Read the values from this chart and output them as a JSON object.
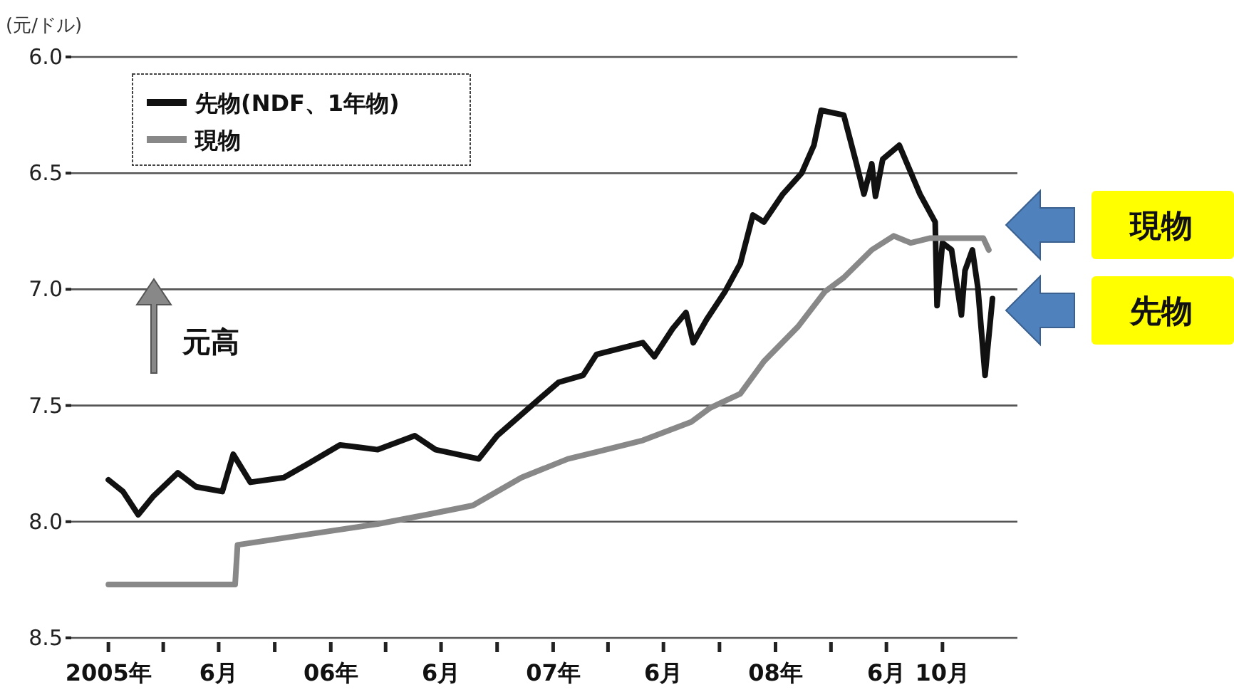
{
  "chart_data": {
    "type": "line",
    "ylabel": "(元/ドル)",
    "ylim": [
      8.5,
      6.0
    ],
    "yticks": [
      {
        "value": 6,
        "label": "6.0"
      },
      {
        "value": 6.5,
        "label": "6.5"
      },
      {
        "value": 7,
        "label": "7.0"
      },
      {
        "value": 7.5,
        "label": "7.5"
      },
      {
        "value": 8,
        "label": "8.0"
      },
      {
        "value": 8.5,
        "label": "8.5"
      }
    ],
    "xlim": [
      "2004-11-01",
      "2009-02-01"
    ],
    "xticks": [
      {
        "value": "2005-01-01",
        "label": "2005年"
      },
      {
        "value": "2005-04-01",
        "label": null
      },
      {
        "value": "2005-07-01",
        "label": "6月"
      },
      {
        "value": "2005-10-01",
        "label": null
      },
      {
        "value": "2006-01-01",
        "label": "06年"
      },
      {
        "value": "2006-04-01",
        "label": null
      },
      {
        "value": "2006-07-01",
        "label": "6月"
      },
      {
        "value": "2006-10-01",
        "label": null
      },
      {
        "value": "2007-01-01",
        "label": "07年"
      },
      {
        "value": "2007-04-01",
        "label": null
      },
      {
        "value": "2007-07-01",
        "label": "6月"
      },
      {
        "value": "2007-10-01",
        "label": null
      },
      {
        "value": "2008-01-01",
        "label": "08年"
      },
      {
        "value": "2008-04-01",
        "label": null
      },
      {
        "value": "2008-07-01",
        "label": "6月"
      },
      {
        "value": "2008-10-01",
        "label": "10月"
      }
    ],
    "grid": "y",
    "legend": "top left",
    "marker": "none",
    "line_style": "solid",
    "series": [
      {
        "name": "先物(NDF、1年物)",
        "color": "#111111",
        "x": [
          "2005-01-01",
          "2005-01-25",
          "2005-02-19",
          "2005-03-16",
          "2005-04-25",
          "2005-05-25",
          "2005-07-07",
          "2005-07-25",
          "2005-08-22",
          "2005-10-16",
          "2005-11-25",
          "2006-01-16",
          "2006-03-19",
          "2006-05-19",
          "2006-06-22",
          "2006-09-01",
          "2006-10-01",
          "2006-12-10",
          "2007-01-10",
          "2007-02-19",
          "2007-03-13",
          "2007-05-28",
          "2007-06-16",
          "2007-07-16",
          "2007-08-07",
          "2007-08-19",
          "2007-09-10",
          "2007-10-10",
          "2007-11-04",
          "2007-11-25",
          "2007-12-13",
          "2008-01-13",
          "2008-02-13",
          "2008-03-04",
          "2008-03-16",
          "2008-04-22",
          "2008-05-13",
          "2008-05-25",
          "2008-06-07",
          "2008-06-13",
          "2008-06-25",
          "2008-07-22",
          "2008-08-25",
          "2008-09-19",
          "2008-09-22",
          "2008-10-01",
          "2008-10-16",
          "2008-11-01",
          "2008-11-07",
          "2008-11-19",
          "2008-11-28",
          "2008-12-10",
          "2008-12-22"
        ],
        "values": [
          7.82,
          7.87,
          7.97,
          7.89,
          7.79,
          7.85,
          7.87,
          7.71,
          7.83,
          7.81,
          7.75,
          7.67,
          7.69,
          7.63,
          7.69,
          7.73,
          7.63,
          7.47,
          7.4,
          7.37,
          7.28,
          7.23,
          7.29,
          7.17,
          7.1,
          7.23,
          7.13,
          7.01,
          6.89,
          6.68,
          6.71,
          6.59,
          6.5,
          6.38,
          6.23,
          6.25,
          6.46,
          6.59,
          6.46,
          6.6,
          6.44,
          6.38,
          6.59,
          6.71,
          7.07,
          6.8,
          6.83,
          7.11,
          6.92,
          6.83,
          6.99,
          7.37,
          7.04
        ]
      },
      {
        "name": "現物",
        "color": "#888888",
        "x": [
          "2005-01-01",
          "2005-07-28",
          "2005-08-01",
          "2005-10-16",
          "2006-03-19",
          "2006-06-07",
          "2006-08-22",
          "2006-11-10",
          "2007-01-25",
          "2007-03-13",
          "2007-05-28",
          "2007-08-16",
          "2007-09-16",
          "2007-11-04",
          "2007-12-13",
          "2008-02-07",
          "2008-03-22",
          "2008-04-22",
          "2008-06-07",
          "2008-07-13",
          "2008-08-10",
          "2008-09-10",
          "2008-10-25",
          "2008-12-07",
          "2008-12-16"
        ],
        "values": [
          8.27,
          8.27,
          8.1,
          8.07,
          8.01,
          7.97,
          7.93,
          7.81,
          7.73,
          7.7,
          7.65,
          7.57,
          7.51,
          7.45,
          7.31,
          7.16,
          7.01,
          6.95,
          6.83,
          6.77,
          6.8,
          6.78,
          6.78,
          6.78,
          6.83
        ]
      }
    ],
    "annotations": [
      "元高",
      "現物",
      "先物"
    ]
  }
}
